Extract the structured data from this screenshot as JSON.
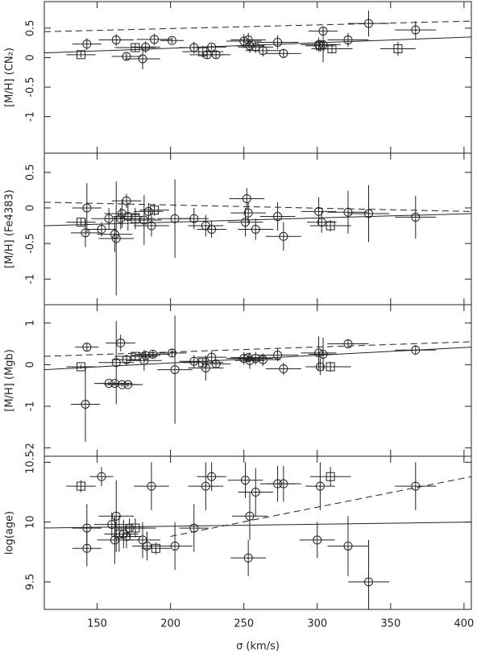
{
  "chart_data": [
    {
      "type": "scatter",
      "ylabel": "[M/H] (CN₂)",
      "xlim": [
        114,
        405
      ],
      "ylim": [
        -1.62,
        0.95
      ],
      "yticks": [
        0.5,
        0,
        -0.5,
        -1
      ],
      "x": [
        139,
        143,
        163,
        170,
        176,
        181,
        183,
        189,
        201,
        216,
        222,
        225,
        228,
        231,
        250,
        253,
        254,
        258,
        263,
        273,
        277,
        301,
        302,
        304,
        304,
        310,
        321,
        335,
        355,
        367
      ],
      "values": [
        0.05,
        0.23,
        0.3,
        0.02,
        0.17,
        -0.02,
        0.18,
        0.31,
        0.29,
        0.17,
        0.1,
        0.05,
        0.18,
        0.05,
        0.28,
        0.3,
        0.2,
        0.18,
        0.12,
        0.26,
        0.07,
        0.22,
        0.2,
        0.45,
        0.22,
        0.15,
        0.3,
        0.58,
        0.15,
        0.47
      ],
      "xerr": [
        10,
        10,
        12,
        10,
        14,
        12,
        10,
        12,
        8,
        10,
        14,
        12,
        10,
        10,
        12,
        12,
        10,
        12,
        12,
        14,
        12,
        12,
        10,
        10,
        12,
        14,
        14,
        14,
        12,
        14
      ],
      "yerr": [
        0.05,
        0.1,
        0.1,
        0.07,
        0.07,
        0.18,
        0.1,
        0.1,
        0.05,
        0.1,
        0.1,
        0.07,
        0.05,
        0.06,
        0.12,
        0.12,
        0.12,
        0.1,
        0.1,
        0.12,
        0.08,
        0.12,
        0.1,
        0.08,
        0.3,
        0.08,
        0.12,
        0.22,
        0.12,
        0.15
      ],
      "marker": [
        "s",
        "o",
        "o",
        "o",
        "s",
        "o",
        "o",
        "o",
        "o",
        "o",
        "s",
        "o",
        "o",
        "o",
        "o",
        "o",
        "o",
        "o",
        "o",
        "o",
        "o",
        "o",
        "s",
        "o",
        "o",
        "s",
        "o",
        "o",
        "s",
        "o"
      ],
      "lines": [
        {
          "style": "solid",
          "x": [
            114,
            405
          ],
          "values": [
            0.08,
            0.35
          ]
        },
        {
          "style": "dashed",
          "x": [
            114,
            405
          ],
          "values": [
            0.44,
            0.62
          ]
        }
      ]
    },
    {
      "type": "scatter",
      "ylabel": "[M/H] (Fe4383)",
      "xlim": [
        114,
        405
      ],
      "ylim": [
        -1.36,
        0.77
      ],
      "yticks": [
        0.5,
        0,
        -0.5,
        -1
      ],
      "x": [
        139,
        142,
        143,
        153,
        158,
        162,
        163,
        166,
        167,
        170,
        171,
        176,
        182,
        185,
        187,
        189,
        203,
        216,
        224,
        228,
        251,
        252,
        253,
        258,
        273,
        277,
        301,
        303,
        309,
        321,
        335,
        367
      ],
      "values": [
        -0.2,
        -0.35,
        0.0,
        -0.3,
        -0.15,
        -0.37,
        -0.43,
        -0.15,
        -0.08,
        0.1,
        -0.12,
        -0.15,
        -0.17,
        -0.05,
        -0.25,
        -0.03,
        -0.15,
        -0.15,
        -0.25,
        -0.3,
        -0.2,
        0.13,
        -0.07,
        -0.3,
        -0.12,
        -0.4,
        -0.05,
        -0.2,
        -0.25,
        -0.06,
        -0.08,
        -0.13
      ],
      "xerr": [
        10,
        10,
        10,
        10,
        12,
        12,
        12,
        10,
        12,
        10,
        10,
        14,
        12,
        10,
        12,
        10,
        12,
        10,
        12,
        10,
        12,
        12,
        12,
        12,
        12,
        12,
        12,
        10,
        14,
        14,
        14,
        14
      ],
      "yerr": [
        0.05,
        0.2,
        0.35,
        0.1,
        0.15,
        0.25,
        0.8,
        0.15,
        0.2,
        0.1,
        0.2,
        0.15,
        0.35,
        0.12,
        0.15,
        0.08,
        0.55,
        0.15,
        0.15,
        0.12,
        0.2,
        0.15,
        0.15,
        0.15,
        0.2,
        0.2,
        0.2,
        0.15,
        0.08,
        0.3,
        0.4,
        0.3
      ],
      "marker": [
        "s",
        "o",
        "o",
        "o",
        "o",
        "o",
        "o",
        "o",
        "o",
        "o",
        "o",
        "s",
        "o",
        "o",
        "o",
        "s",
        "o",
        "o",
        "o",
        "o",
        "o",
        "o",
        "o",
        "o",
        "o",
        "o",
        "o",
        "o",
        "s",
        "o",
        "o",
        "o"
      ],
      "lines": [
        {
          "style": "solid",
          "x": [
            114,
            405
          ],
          "values": [
            -0.25,
            -0.08
          ]
        },
        {
          "style": "dashed",
          "x": [
            114,
            405
          ],
          "values": [
            0.08,
            -0.05
          ]
        }
      ]
    },
    {
      "type": "scatter",
      "ylabel": "[M/H] (Mgb)",
      "xlim": [
        114,
        405
      ],
      "ylim": [
        -2.2,
        1.44
      ],
      "yticks": [
        1,
        0,
        -1,
        -2
      ],
      "x": [
        139,
        142,
        143,
        158,
        162,
        163,
        166,
        167,
        170,
        171,
        176,
        182,
        183,
        188,
        201,
        203,
        216,
        222,
        224,
        228,
        231,
        250,
        253,
        254,
        258,
        263,
        273,
        277,
        301,
        302,
        304,
        309,
        321,
        367
      ],
      "values": [
        -0.05,
        -0.95,
        0.42,
        -0.45,
        -0.45,
        0.05,
        0.52,
        -0.48,
        0.12,
        -0.48,
        0.2,
        0.1,
        0.22,
        0.25,
        0.28,
        -0.12,
        0.08,
        0.05,
        -0.08,
        0.18,
        0.02,
        0.15,
        0.17,
        0.1,
        0.15,
        0.12,
        0.23,
        -0.1,
        0.28,
        -0.05,
        0.25,
        -0.05,
        0.5,
        0.35
      ],
      "xerr": [
        10,
        10,
        8,
        10,
        12,
        12,
        10,
        12,
        10,
        10,
        14,
        12,
        10,
        12,
        10,
        12,
        10,
        14,
        12,
        10,
        10,
        12,
        12,
        10,
        12,
        12,
        14,
        12,
        12,
        10,
        10,
        14,
        14,
        14
      ],
      "yerr": [
        0.05,
        0.9,
        0.1,
        0.05,
        0.05,
        1.0,
        0.2,
        0.05,
        0.12,
        0.05,
        0.1,
        0.25,
        0.1,
        0.1,
        0.1,
        1.3,
        0.15,
        0.1,
        0.3,
        0.15,
        0.1,
        0.15,
        0.1,
        0.2,
        0.15,
        0.15,
        0.15,
        0.15,
        0.4,
        0.2,
        0.4,
        0.12,
        0.1,
        0.12
      ],
      "marker": [
        "s",
        "o",
        "o",
        "o",
        "o",
        "o",
        "o",
        "o",
        "o",
        "o",
        "s",
        "o",
        "o",
        "o",
        "o",
        "o",
        "o",
        "s",
        "o",
        "o",
        "o",
        "o",
        "o",
        "o",
        "o",
        "o",
        "o",
        "o",
        "o",
        "o",
        "o",
        "s",
        "o",
        "o"
      ],
      "lines": [
        {
          "style": "solid",
          "x": [
            114,
            405
          ],
          "values": [
            -0.12,
            0.42
          ]
        },
        {
          "style": "dashed",
          "x": [
            114,
            405
          ],
          "values": [
            0.2,
            0.55
          ]
        }
      ]
    },
    {
      "type": "scatter",
      "ylabel": "log(age)",
      "xlabel": "σ (km/s)",
      "xlim": [
        114,
        405
      ],
      "ylim": [
        9.27,
        10.55
      ],
      "yticks": [
        9.5,
        10,
        10.5
      ],
      "xticks": [
        150,
        200,
        250,
        300,
        350,
        400
      ],
      "x": [
        139,
        143,
        143,
        153,
        160,
        162,
        163,
        165,
        168,
        170,
        172,
        176,
        181,
        184,
        187,
        190,
        203,
        216,
        224,
        228,
        251,
        253,
        254,
        258,
        273,
        277,
        300,
        302,
        309,
        321,
        335,
        367
      ],
      "values": [
        10.3,
        9.78,
        9.95,
        10.38,
        9.98,
        9.85,
        10.05,
        9.9,
        9.9,
        9.88,
        9.95,
        9.95,
        9.85,
        9.8,
        10.3,
        9.78,
        9.8,
        9.95,
        10.3,
        10.38,
        10.35,
        9.7,
        10.05,
        10.25,
        10.32,
        10.32,
        9.85,
        10.3,
        10.38,
        9.8,
        9.5,
        10.3
      ],
      "xerr": [
        10,
        10,
        10,
        8,
        12,
        12,
        12,
        10,
        10,
        10,
        10,
        14,
        12,
        10,
        12,
        10,
        12,
        10,
        12,
        10,
        12,
        12,
        12,
        12,
        12,
        12,
        12,
        10,
        14,
        14,
        14,
        14
      ],
      "yerr": [
        0.05,
        0.15,
        0.2,
        0.08,
        0.1,
        0.2,
        0.3,
        0.15,
        0.12,
        0.1,
        0.08,
        0.08,
        0.15,
        0.12,
        0.2,
        0.05,
        0.2,
        0.2,
        0.2,
        0.12,
        0.15,
        0.15,
        0.2,
        0.2,
        0.15,
        0.15,
        0.15,
        0.2,
        0.08,
        0.25,
        0.35,
        0.2
      ],
      "marker": [
        "s",
        "o",
        "o",
        "o",
        "o",
        "o",
        "o",
        "s",
        "o",
        "o",
        "o",
        "s",
        "o",
        "o",
        "o",
        "s",
        "o",
        "o",
        "o",
        "o",
        "o",
        "o",
        "o",
        "o",
        "o",
        "o",
        "o",
        "o",
        "s",
        "o",
        "o",
        "o"
      ],
      "lines": [
        {
          "style": "solid",
          "x": [
            114,
            405
          ],
          "values": [
            9.95,
            10.0
          ]
        },
        {
          "style": "dashed",
          "x": [
            200,
            405
          ],
          "values": [
            9.88,
            10.38
          ]
        }
      ]
    }
  ]
}
